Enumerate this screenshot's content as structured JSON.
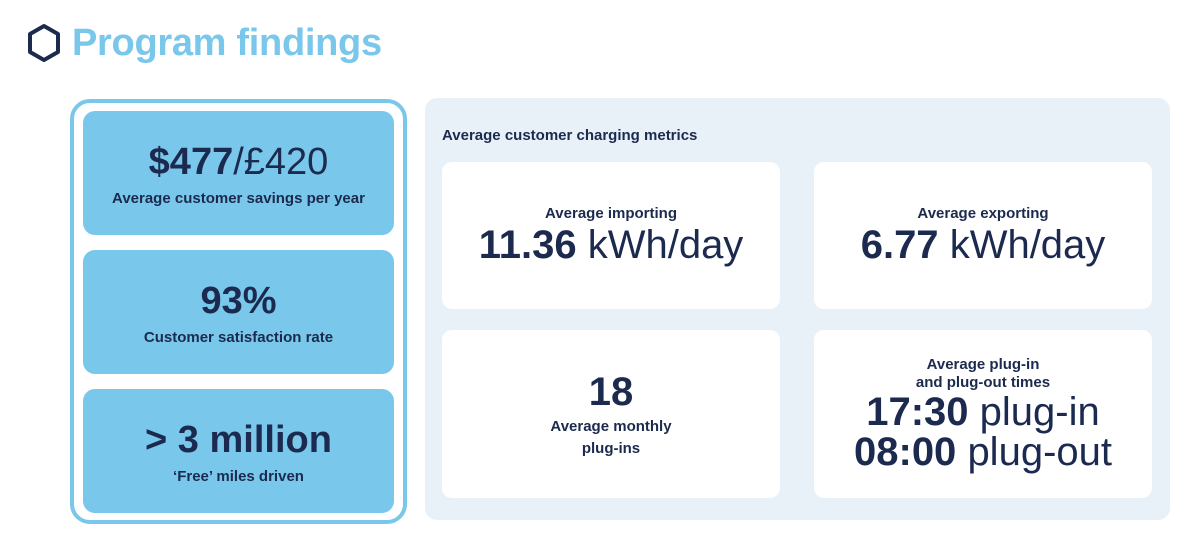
{
  "header": {
    "title": "Program findings",
    "icon": "hexagon-outline-icon"
  },
  "stats": [
    {
      "value_bold": "$477",
      "value_light": "/£420",
      "label": "Average customer savings per year"
    },
    {
      "value_bold": "93%",
      "label": "Customer satisfaction rate"
    },
    {
      "value_bold": "> 3 million",
      "label": "‘Free’ miles driven"
    }
  ],
  "metrics": {
    "title": "Average customer charging metrics",
    "importing": {
      "label": "Average importing",
      "number": "11.36",
      "unit": "kWh/day"
    },
    "exporting": {
      "label": "Average exporting",
      "number": "6.77",
      "unit": "kWh/day"
    },
    "plugins": {
      "number": "18",
      "label_line1": "Average monthly",
      "label_line2": "plug-ins"
    },
    "plug_times": {
      "label_line1": "Average plug-in",
      "label_line2": "and plug-out times",
      "plugin_time": "17:30",
      "plugin_label": "plug-in",
      "plugout_time": "08:00",
      "plugout_label": "plug-out"
    }
  },
  "colors": {
    "accent": "#79c7ea",
    "navy": "#1b2a4e",
    "panel_bg": "#e8f1f8"
  }
}
